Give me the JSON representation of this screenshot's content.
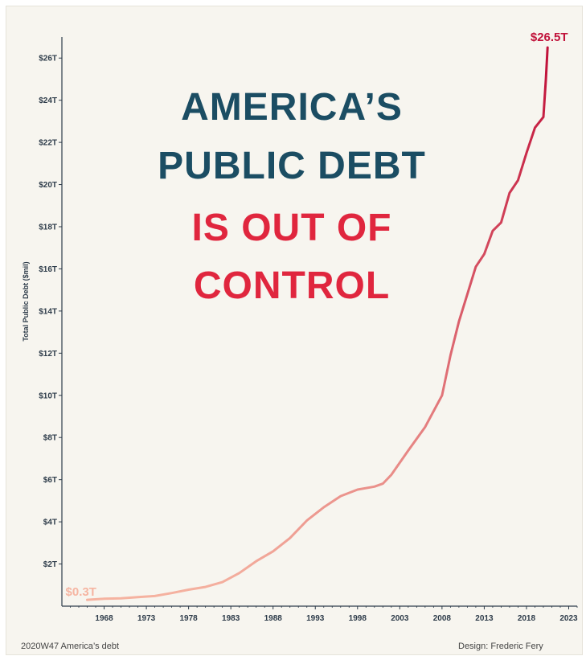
{
  "headline": {
    "line1": "AMERICA’S",
    "line2": "PUBLIC DEBT",
    "line3": "IS OUT OF",
    "line4": "CONTROL",
    "color_primary": "#1b4d63",
    "color_accent": "#e0263e"
  },
  "footer": {
    "left": "2020W47 America’s debt",
    "right": "Design: Frederic Fery"
  },
  "chart_data": {
    "type": "line",
    "ylabel": "Total Public Debt ($mil)",
    "xlim": [
      1963,
      2024
    ],
    "ylim": [
      0,
      27
    ],
    "x_ticks": [
      {
        "value": 1968,
        "label": "1968"
      },
      {
        "value": 1973,
        "label": "1973"
      },
      {
        "value": 1978,
        "label": "1978"
      },
      {
        "value": 1983,
        "label": "1983"
      },
      {
        "value": 1988,
        "label": "1988"
      },
      {
        "value": 1993,
        "label": "1993"
      },
      {
        "value": 1998,
        "label": "1998"
      },
      {
        "value": 2003,
        "label": "2003"
      },
      {
        "value": 2008,
        "label": "2008"
      },
      {
        "value": 2013,
        "label": "2013"
      },
      {
        "value": 2018,
        "label": "2018"
      },
      {
        "value": 2023,
        "label": "2023"
      }
    ],
    "y_ticks": [
      {
        "value": 2,
        "label": "$2T"
      },
      {
        "value": 4,
        "label": "$4T"
      },
      {
        "value": 6,
        "label": "$6T"
      },
      {
        "value": 8,
        "label": "$8T"
      },
      {
        "value": 10,
        "label": "$10T"
      },
      {
        "value": 12,
        "label": "$12T"
      },
      {
        "value": 14,
        "label": "$14T"
      },
      {
        "value": 16,
        "label": "$16T"
      },
      {
        "value": 18,
        "label": "$18T"
      },
      {
        "value": 20,
        "label": "$20T"
      },
      {
        "value": 22,
        "label": "$22T"
      },
      {
        "value": 24,
        "label": "$24T"
      },
      {
        "value": 26,
        "label": "$26T"
      }
    ],
    "color_low": "#f6b5a2",
    "color_high": "#c1123a",
    "start_label": "$0.3T",
    "end_label": "$26.5T",
    "series": [
      {
        "x": [
          1966,
          1968,
          1970,
          1972,
          1974,
          1976,
          1978,
          1980,
          1982,
          1984,
          1986,
          1988,
          1990,
          1992,
          1994,
          1996,
          1998,
          2000,
          2001,
          2002,
          2004,
          2006,
          2008,
          2009,
          2010,
          2011,
          2012,
          2013,
          2014,
          2015,
          2016,
          2017,
          2018,
          2019,
          2020,
          2020.3,
          2020.5
        ],
        "y": [
          0.3,
          0.35,
          0.37,
          0.43,
          0.48,
          0.62,
          0.78,
          0.91,
          1.14,
          1.57,
          2.13,
          2.6,
          3.23,
          4.06,
          4.69,
          5.22,
          5.53,
          5.67,
          5.81,
          6.23,
          7.38,
          8.5,
          10.0,
          11.9,
          13.5,
          14.8,
          16.1,
          16.7,
          17.8,
          18.2,
          19.6,
          20.2,
          21.5,
          22.7,
          23.2,
          25.0,
          26.5
        ]
      }
    ]
  }
}
